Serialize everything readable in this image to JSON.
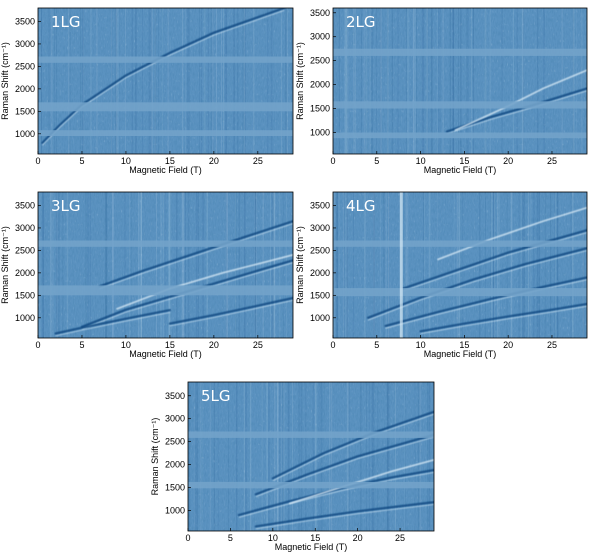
{
  "figure": {
    "colors": {
      "background": "#5b92c0",
      "dark_line": "#0d4680",
      "light_line": "#d9ebf7",
      "band": "#73a3c9"
    }
  },
  "chart_data": [
    {
      "type": "heatmap",
      "panel_label": "1LG",
      "xlabel": "Magnetic Field (T)",
      "ylabel": "Raman Shift (cm⁻¹)",
      "xlim": [
        0,
        29
      ],
      "ylim": [
        550,
        3800
      ],
      "xticks": [
        0,
        5,
        10,
        15,
        20,
        25
      ],
      "yticks": [
        1000,
        1500,
        2000,
        2500,
        3000,
        3500
      ],
      "masked_bands_cm": [
        [
          950,
          1080
        ],
        [
          1500,
          1700
        ],
        [
          2580,
          2720
        ]
      ],
      "curves": [
        {
          "points": [
            [
              0.5,
              800
            ],
            [
              2.5,
              1200
            ],
            [
              5,
              1650
            ],
            [
              10,
              2300
            ],
            [
              15,
              2800
            ],
            [
              20,
              3250
            ],
            [
              28,
              3800
            ]
          ],
          "style": "dark"
        }
      ],
      "grid": false,
      "legend": "none"
    },
    {
      "type": "heatmap",
      "panel_label": "2LG",
      "xlabel": "Magnetic Field (T)",
      "ylabel": "Raman Shift (cm⁻¹)",
      "xlim": [
        0,
        29
      ],
      "ylim": [
        550,
        3600
      ],
      "xticks": [
        0,
        5,
        10,
        15,
        20,
        25
      ],
      "yticks": [
        1000,
        1500,
        2000,
        2500,
        3000,
        3500
      ],
      "masked_bands_cm": [
        [
          880,
          1000
        ],
        [
          1500,
          1650
        ],
        [
          2600,
          2750
        ]
      ],
      "curves": [
        {
          "points": [
            [
              13,
              1020
            ],
            [
              18,
              1320
            ],
            [
              23,
              1580
            ],
            [
              29,
              1920
            ]
          ],
          "style": "dark"
        },
        {
          "points": [
            [
              14,
              1050
            ],
            [
              20,
              1550
            ],
            [
              24,
              1920
            ],
            [
              29,
              2300
            ]
          ],
          "style": "light"
        }
      ],
      "grid": false,
      "legend": "none"
    },
    {
      "type": "heatmap",
      "panel_label": "3LG",
      "xlabel": "Magnetic Field (T)",
      "ylabel": "Raman Shift (cm⁻¹)",
      "xlim": [
        0,
        29
      ],
      "ylim": [
        550,
        3800
      ],
      "xticks": [
        0,
        5,
        10,
        15,
        20,
        25
      ],
      "yticks": [
        1000,
        1500,
        2000,
        2500,
        3000,
        3500
      ],
      "masked_bands_cm": [
        [
          1500,
          1720
        ],
        [
          2580,
          2720
        ]
      ],
      "curves": [
        {
          "points": [
            [
              15,
              870
            ],
            [
              20,
              1060
            ],
            [
              25,
              1270
            ],
            [
              29,
              1440
            ]
          ],
          "style": "dark"
        },
        {
          "points": [
            [
              5,
              800
            ],
            [
              10,
              1180
            ],
            [
              15,
              1470
            ],
            [
              20,
              1760
            ],
            [
              25,
              2050
            ],
            [
              29,
              2280
            ]
          ],
          "style": "dark"
        },
        {
          "points": [
            [
              7,
              1700
            ],
            [
              12,
              2050
            ],
            [
              18,
              2440
            ],
            [
              24,
              2830
            ],
            [
              29,
              3150
            ]
          ],
          "style": "dark"
        },
        {
          "points": [
            [
              9,
              1200
            ],
            [
              15,
              1650
            ],
            [
              21,
              2000
            ],
            [
              29,
              2400
            ]
          ],
          "style": "light"
        },
        {
          "points": [
            [
              2,
              650
            ],
            [
              5,
              780
            ],
            [
              10,
              980
            ],
            [
              15,
              1170
            ]
          ],
          "style": "dark"
        }
      ],
      "grid": false,
      "legend": "none"
    },
    {
      "type": "heatmap",
      "panel_label": "4LG",
      "xlabel": "Magnetic Field (T)",
      "ylabel": "Raman Shift (cm⁻¹)",
      "xlim": [
        0,
        29
      ],
      "ylim": [
        550,
        3800
      ],
      "xticks": [
        0,
        5,
        10,
        15,
        20,
        25
      ],
      "yticks": [
        1000,
        1500,
        2000,
        2500,
        3000,
        3500
      ],
      "masked_bands_cm": [
        [
          1480,
          1660
        ],
        [
          2580,
          2720
        ]
      ],
      "artifact_column_T": 7.8,
      "curves": [
        {
          "points": [
            [
              10,
              700
            ],
            [
              15,
              870
            ],
            [
              20,
              1030
            ],
            [
              25,
              1180
            ],
            [
              29,
              1310
            ]
          ],
          "style": "dark"
        },
        {
          "points": [
            [
              6,
              820
            ],
            [
              12,
              1130
            ],
            [
              18,
              1420
            ],
            [
              24,
              1690
            ],
            [
              29,
              1900
            ]
          ],
          "style": "dark"
        },
        {
          "points": [
            [
              4,
              1000
            ],
            [
              10,
              1450
            ],
            [
              16,
              1850
            ],
            [
              22,
              2200
            ],
            [
              29,
              2550
            ]
          ],
          "style": "dark"
        },
        {
          "points": [
            [
              8,
              1650
            ],
            [
              14,
              2050
            ],
            [
              20,
              2450
            ],
            [
              29,
              2950
            ]
          ],
          "style": "dark"
        },
        {
          "points": [
            [
              12,
              2300
            ],
            [
              18,
              2750
            ],
            [
              24,
              3150
            ],
            [
              29,
              3450
            ]
          ],
          "style": "light"
        }
      ],
      "grid": false,
      "legend": "none"
    },
    {
      "type": "heatmap",
      "panel_label": "5LG",
      "xlabel": "Magnetic Field (T)",
      "ylabel": "Raman Shift (cm⁻¹)",
      "xlim": [
        0,
        29
      ],
      "ylim": [
        550,
        3800
      ],
      "xticks": [
        0,
        5,
        10,
        15,
        20,
        25
      ],
      "yticks": [
        1000,
        1500,
        2000,
        2500,
        3000,
        3500
      ],
      "masked_bands_cm": [
        [
          1480,
          1620
        ],
        [
          2580,
          2720
        ]
      ],
      "curves": [
        {
          "points": [
            [
              8,
              650
            ],
            [
              14,
              820
            ],
            [
              20,
              980
            ],
            [
              29,
              1180
            ]
          ],
          "style": "dark"
        },
        {
          "points": [
            [
              6,
              900
            ],
            [
              12,
              1200
            ],
            [
              18,
              1480
            ],
            [
              24,
              1720
            ],
            [
              29,
              1880
            ]
          ],
          "style": "dark"
        },
        {
          "points": [
            [
              8,
              1350
            ],
            [
              14,
              1780
            ],
            [
              20,
              2180
            ],
            [
              29,
              2650
            ]
          ],
          "style": "dark"
        },
        {
          "points": [
            [
              10,
              1700
            ],
            [
              16,
              2250
            ],
            [
              22,
              2700
            ],
            [
              29,
              3150
            ]
          ],
          "style": "dark"
        },
        {
          "points": [
            [
              12,
              1150
            ],
            [
              18,
              1500
            ],
            [
              24,
              1850
            ],
            [
              29,
              2100
            ]
          ],
          "style": "light"
        }
      ],
      "grid": false,
      "legend": "none"
    }
  ]
}
